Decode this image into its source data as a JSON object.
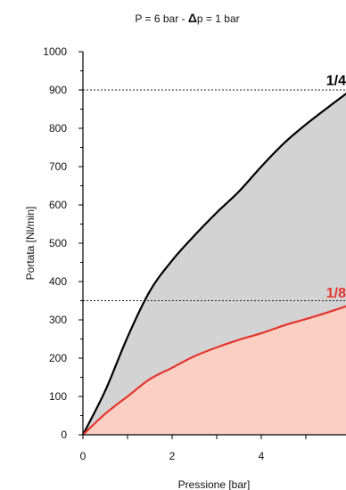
{
  "chart_data": {
    "type": "area",
    "title_prefix": "P = 6 bar - ",
    "title_delta": "Δ",
    "title_suffix": "p = 1 bar",
    "xlabel": "Pressione [bar]",
    "ylabel": "Portata [Nl/min]",
    "xlim": [
      0,
      6
    ],
    "ylim": [
      0,
      1000
    ],
    "x_ticks": [
      "0",
      "2",
      "4"
    ],
    "y_ticks": [
      "0",
      "100",
      "200",
      "300",
      "400",
      "500",
      "600",
      "700",
      "800",
      "900",
      "1000"
    ],
    "reference_lines": [
      900,
      350
    ],
    "series": [
      {
        "name": "1/4",
        "color": "#000000",
        "fill": "#d3d3d3",
        "points": [
          [
            0,
            0
          ],
          [
            0.5,
            115
          ],
          [
            1.0,
            255
          ],
          [
            1.5,
            375
          ],
          [
            2.0,
            455
          ],
          [
            2.5,
            520
          ],
          [
            3.0,
            580
          ],
          [
            3.5,
            635
          ],
          [
            4.0,
            700
          ],
          [
            4.5,
            760
          ],
          [
            5.0,
            810
          ],
          [
            5.5,
            855
          ],
          [
            5.9,
            890
          ]
        ]
      },
      {
        "name": "1/8",
        "color": "#e3342f",
        "fill": "#fbd0c3",
        "points": [
          [
            0,
            0
          ],
          [
            0.5,
            55
          ],
          [
            1.0,
            100
          ],
          [
            1.5,
            145
          ],
          [
            2.0,
            175
          ],
          [
            2.5,
            205
          ],
          [
            3.0,
            228
          ],
          [
            3.5,
            248
          ],
          [
            4.0,
            265
          ],
          [
            4.5,
            285
          ],
          [
            5.0,
            302
          ],
          [
            5.5,
            320
          ],
          [
            5.9,
            335
          ]
        ]
      }
    ]
  }
}
